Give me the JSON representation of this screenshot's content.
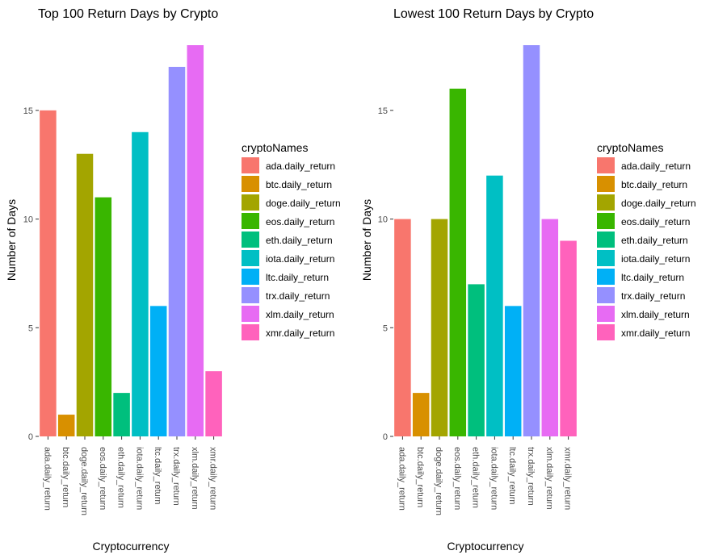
{
  "chart_data": [
    {
      "type": "bar",
      "title": "Top 100 Return Days by Crypto",
      "xlabel": "Cryptocurrency",
      "ylabel": "Number of Days",
      "categories": [
        "ada.daily_return",
        "btc.daily_return",
        "doge.daily_return",
        "eos.daily_return",
        "eth.daily_return",
        "iota.daily_return",
        "ltc.daily_return",
        "trx.daily_return",
        "xlm.daily_return",
        "xmr.daily_return"
      ],
      "values": [
        15,
        1,
        13,
        11,
        2,
        14,
        6,
        17,
        18,
        3
      ],
      "ylim": [
        0,
        18
      ],
      "yticks": [
        0,
        5,
        10,
        15
      ],
      "grid": false,
      "legend": {
        "title": "cryptoNames",
        "position": "right",
        "entries": [
          "ada.daily_return",
          "btc.daily_return",
          "doge.daily_return",
          "eos.daily_return",
          "eth.daily_return",
          "iota.daily_return",
          "ltc.daily_return",
          "trx.daily_return",
          "xlm.daily_return",
          "xmr.daily_return"
        ]
      }
    },
    {
      "type": "bar",
      "title": "Lowest 100 Return Days by Crypto",
      "xlabel": "Cryptocurrency",
      "ylabel": "Number of Days",
      "categories": [
        "ada.daily_return",
        "btc.daily_return",
        "doge.daily_return",
        "eos.daily_return",
        "eth.daily_return",
        "iota.daily_return",
        "ltc.daily_return",
        "trx.daily_return",
        "xlm.daily_return",
        "xmr.daily_return"
      ],
      "values": [
        10,
        2,
        10,
        16,
        7,
        12,
        6,
        18,
        10,
        9
      ],
      "ylim": [
        0,
        18
      ],
      "yticks": [
        0,
        5,
        10,
        15
      ],
      "grid": false,
      "legend": {
        "title": "cryptoNames",
        "position": "right",
        "entries": [
          "ada.daily_return",
          "btc.daily_return",
          "doge.daily_return",
          "eos.daily_return",
          "eth.daily_return",
          "iota.daily_return",
          "ltc.daily_return",
          "trx.daily_return",
          "xlm.daily_return",
          "xmr.daily_return"
        ]
      }
    }
  ],
  "colors": [
    "#F8766D",
    "#D89000",
    "#A3A500",
    "#39B600",
    "#00BF7D",
    "#00BFC4",
    "#00B0F6",
    "#9590FF",
    "#E76BF3",
    "#FF62BC"
  ]
}
